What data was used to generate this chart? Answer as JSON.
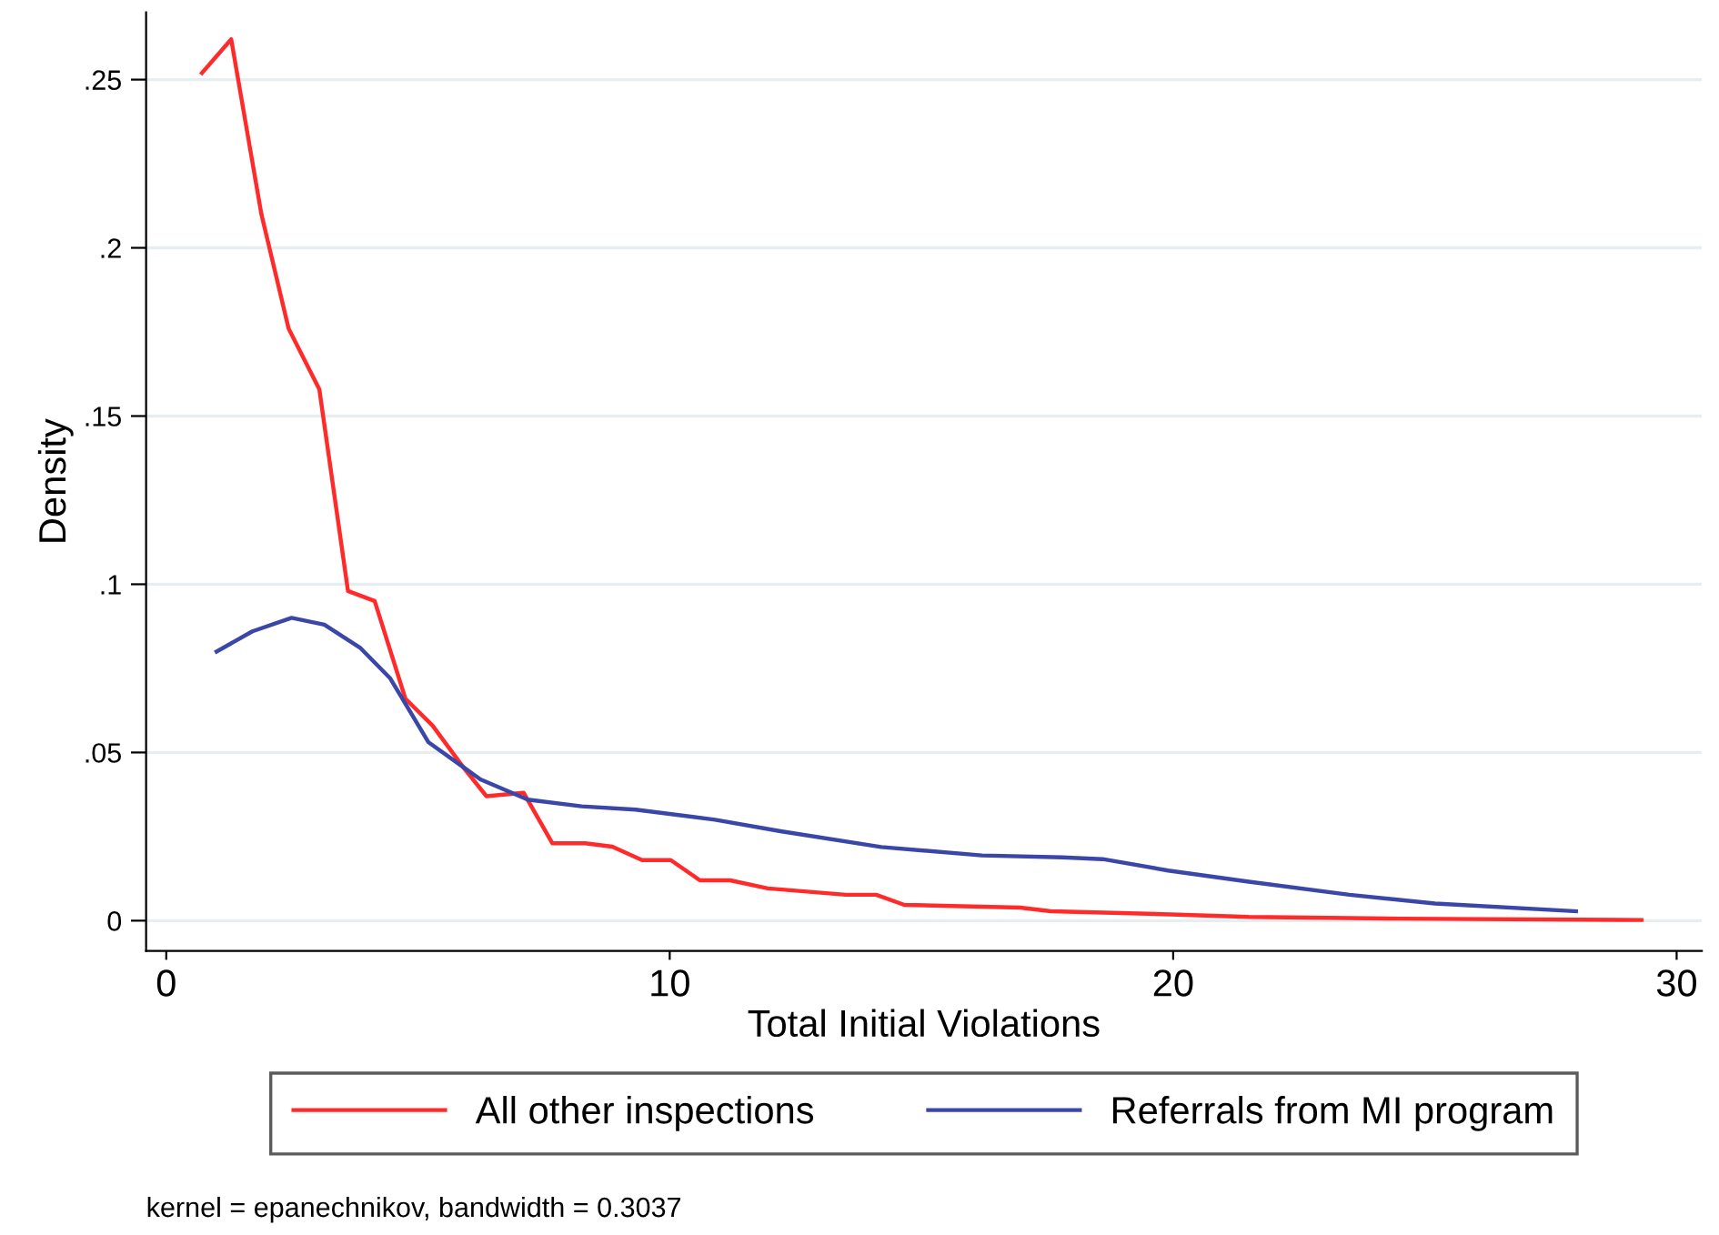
{
  "chart_data": {
    "type": "line",
    "xlabel": "Total Initial Violations",
    "ylabel": "Density",
    "annotations": [
      "kernel = epanechnikov, bandwidth = 0.3037"
    ],
    "xlim": [
      -0.4,
      30.5
    ],
    "ylim": [
      -0.009,
      0.27
    ],
    "xticks": [
      0,
      10,
      20,
      30
    ],
    "yticks": [
      0,
      {
        "value": 0.05,
        "label": ".05"
      },
      {
        "value": 0.1,
        "label": ".1"
      },
      {
        "value": 0.15,
        "label": ".15"
      },
      {
        "value": 0.2,
        "label": ".2"
      },
      {
        "value": 0.25,
        "label": ".25"
      }
    ],
    "grid": "y",
    "legend": "bottom",
    "marker": "none",
    "line_style": "solid",
    "series": [
      {
        "name": "All other inspections",
        "color": "#ff2a2a",
        "x": [
          0.71,
          1.29,
          1.89,
          2.43,
          3.04,
          3.61,
          4.14,
          4.75,
          5.29,
          5.93,
          6.36,
          7.1,
          7.67,
          8.32,
          8.86,
          9.45,
          10.02,
          10.6,
          11.2,
          11.95,
          13.5,
          14.1,
          14.66,
          16.96,
          17.57,
          20.1,
          21.5,
          24.5,
          29.3
        ],
        "values": [
          0.252,
          0.262,
          0.21,
          0.176,
          0.158,
          0.098,
          0.095,
          0.066,
          0.058,
          0.045,
          0.037,
          0.038,
          0.023,
          0.023,
          0.022,
          0.018,
          0.018,
          0.012,
          0.012,
          0.0096,
          0.0077,
          0.0077,
          0.0047,
          0.0039,
          0.0028,
          0.0018,
          0.0011,
          0.0006,
          0.0002
        ]
      },
      {
        "name": "Referrals from MI program",
        "color": "#3a46a8",
        "x": [
          1.0,
          1.71,
          2.49,
          3.14,
          3.86,
          4.45,
          5.21,
          6.24,
          7.18,
          8.25,
          9.32,
          10.9,
          12.2,
          14.2,
          16.2,
          17.8,
          18.6,
          19.9,
          21.5,
          23.5,
          25.2,
          28.0
        ],
        "values": [
          0.08,
          0.086,
          0.09,
          0.088,
          0.081,
          0.072,
          0.053,
          0.042,
          0.036,
          0.034,
          0.033,
          0.03,
          0.0266,
          0.0219,
          0.0194,
          0.0188,
          0.0183,
          0.0149,
          0.0116,
          0.0077,
          0.0051,
          0.0028
        ]
      }
    ]
  }
}
